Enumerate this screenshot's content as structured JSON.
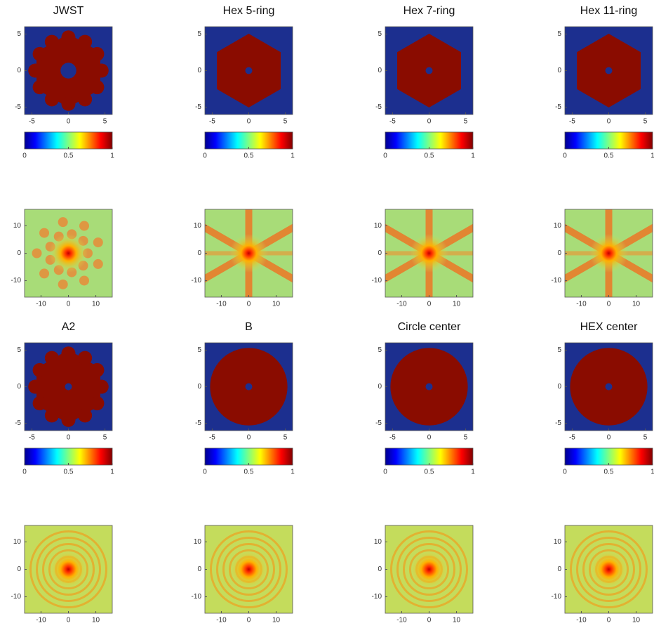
{
  "chart_data": [
    {
      "type": "pupil",
      "title": "JWST",
      "xlim": [
        -6,
        6
      ],
      "ylim": [
        -6,
        6
      ],
      "xticks": [
        -5,
        0,
        5
      ],
      "yticks": [
        -5,
        0,
        5
      ],
      "colorbar": {
        "lim": [
          0,
          1
        ],
        "ticks": [
          0,
          0.5,
          1
        ]
      }
    },
    {
      "type": "pupil",
      "title": "Hex 5-ring",
      "xlim": [
        -6,
        6
      ],
      "ylim": [
        -6,
        6
      ],
      "xticks": [
        -5,
        0,
        5
      ],
      "yticks": [
        -5,
        0,
        5
      ],
      "colorbar": {
        "lim": [
          0,
          1
        ],
        "ticks": [
          0,
          0.5,
          1
        ]
      }
    },
    {
      "type": "pupil",
      "title": "Hex 7-ring",
      "xlim": [
        -6,
        6
      ],
      "ylim": [
        -6,
        6
      ],
      "xticks": [
        -5,
        0,
        5
      ],
      "yticks": [
        -5,
        0,
        5
      ],
      "colorbar": {
        "lim": [
          0,
          1
        ],
        "ticks": [
          0,
          0.5,
          1
        ]
      }
    },
    {
      "type": "pupil",
      "title": "Hex 11-ring",
      "xlim": [
        -6,
        6
      ],
      "ylim": [
        -6,
        6
      ],
      "xticks": [
        -5,
        0,
        5
      ],
      "yticks": [
        -5,
        0,
        5
      ],
      "colorbar": {
        "lim": [
          0,
          1
        ],
        "ticks": [
          0,
          0.5,
          1
        ]
      }
    },
    {
      "type": "psf",
      "xlim": [
        -16,
        16
      ],
      "ylim": [
        -16,
        16
      ],
      "xticks": [
        -10,
        0,
        10
      ],
      "yticks": [
        -10,
        0,
        10
      ]
    },
    {
      "type": "psf",
      "xlim": [
        -16,
        16
      ],
      "ylim": [
        -16,
        16
      ],
      "xticks": [
        -10,
        0,
        10
      ],
      "yticks": [
        -10,
        0,
        10
      ]
    },
    {
      "type": "psf",
      "xlim": [
        -16,
        16
      ],
      "ylim": [
        -16,
        16
      ],
      "xticks": [
        -10,
        0,
        10
      ],
      "yticks": [
        -10,
        0,
        10
      ]
    },
    {
      "type": "psf",
      "xlim": [
        -16,
        16
      ],
      "ylim": [
        -16,
        16
      ],
      "xticks": [
        -10,
        0,
        10
      ],
      "yticks": [
        -10,
        0,
        10
      ]
    },
    {
      "type": "pupil",
      "title": "A2",
      "xlim": [
        -6,
        6
      ],
      "ylim": [
        -6,
        6
      ],
      "xticks": [
        -5,
        0,
        5
      ],
      "yticks": [
        -5,
        0,
        5
      ],
      "colorbar": {
        "lim": [
          0,
          1
        ],
        "ticks": [
          0,
          0.5,
          1
        ]
      }
    },
    {
      "type": "pupil",
      "title": "B",
      "xlim": [
        -6,
        6
      ],
      "ylim": [
        -6,
        6
      ],
      "xticks": [
        -5,
        0,
        5
      ],
      "yticks": [
        -5,
        0,
        5
      ],
      "colorbar": {
        "lim": [
          0,
          1
        ],
        "ticks": [
          0,
          0.5,
          1
        ]
      }
    },
    {
      "type": "pupil",
      "title": "Circle center",
      "xlim": [
        -6,
        6
      ],
      "ylim": [
        -6,
        6
      ],
      "xticks": [
        -5,
        0,
        5
      ],
      "yticks": [
        -5,
        0,
        5
      ],
      "colorbar": {
        "lim": [
          0,
          1
        ],
        "ticks": [
          0,
          0.5,
          1
        ]
      }
    },
    {
      "type": "pupil",
      "title": "HEX center",
      "xlim": [
        -6,
        6
      ],
      "ylim": [
        -6,
        6
      ],
      "xticks": [
        -5,
        0,
        5
      ],
      "yticks": [
        -5,
        0,
        5
      ],
      "colorbar": {
        "lim": [
          0,
          1
        ],
        "ticks": [
          0,
          0.5,
          1
        ]
      }
    },
    {
      "type": "psf",
      "xlim": [
        -16,
        16
      ],
      "ylim": [
        -16,
        16
      ],
      "xticks": [
        -10,
        0,
        10
      ],
      "yticks": [
        -10,
        0,
        10
      ]
    },
    {
      "type": "psf",
      "xlim": [
        -16,
        16
      ],
      "ylim": [
        -16,
        16
      ],
      "xticks": [
        -10,
        0,
        10
      ],
      "yticks": [
        -10,
        0,
        10
      ]
    },
    {
      "type": "psf",
      "xlim": [
        -16,
        16
      ],
      "ylim": [
        -16,
        16
      ],
      "xticks": [
        -10,
        0,
        10
      ],
      "yticks": [
        -10,
        0,
        10
      ]
    },
    {
      "type": "psf",
      "xlim": [
        -16,
        16
      ],
      "ylim": [
        -16,
        16
      ],
      "xticks": [
        -10,
        0,
        10
      ],
      "yticks": [
        -10,
        0,
        10
      ]
    }
  ]
}
